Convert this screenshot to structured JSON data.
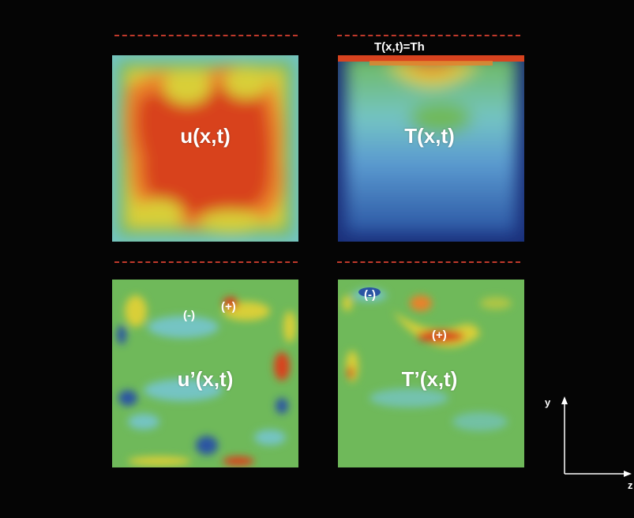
{
  "panels": [
    {
      "id": "u",
      "label": "u(x,t)"
    },
    {
      "id": "T",
      "label": "T(x,t)"
    },
    {
      "id": "uprime",
      "label": "u’(x,t)"
    },
    {
      "id": "Tprime",
      "label": "T’(x,t)"
    }
  ],
  "boundary_label": "T(x,t)=Th",
  "annotations": {
    "uprime_neg": "(-)",
    "uprime_pos": "(+)",
    "Tprime_neg": "(-)",
    "Tprime_pos": "(+)"
  },
  "axes": {
    "y": "y",
    "z": "z"
  },
  "colors": {
    "dash": "#c0392b",
    "red": "#d8431f",
    "orange": "#e9822a",
    "yellow": "#d9cf37",
    "green": "#6fb95a",
    "cyan": "#74c4c3",
    "blue": "#2a55a3",
    "dark_blue": "#1a2f7a"
  }
}
